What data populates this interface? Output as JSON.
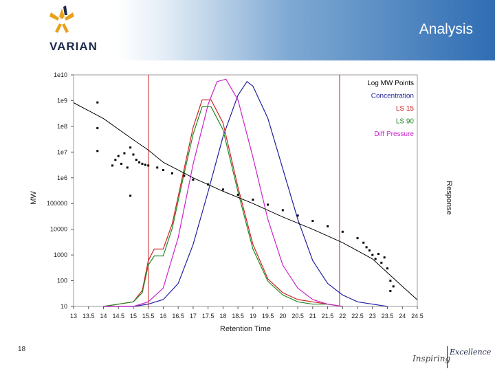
{
  "header": {
    "title": "Analysis",
    "logo_text": "VARIAN"
  },
  "footer": {
    "page_number": "18",
    "tagline_part1": "Inspiring",
    "tagline_part2": "Excellence"
  },
  "chart_data": {
    "type": "line",
    "xlabel": "Retention Time",
    "ylabel": "MW",
    "ylabel_right": "Response",
    "xlim": [
      13,
      24.5
    ],
    "ylim": [
      10,
      10000000000
    ],
    "yscale": "log",
    "x_ticks": [
      "13",
      "13.5",
      "14",
      "14.5",
      "15",
      "15.5",
      "16",
      "16.5",
      "17",
      "17.5",
      "18",
      "18.5",
      "19",
      "19.5",
      "20",
      "20.5",
      "21",
      "21.5",
      "22",
      "22.5",
      "23",
      "23.5",
      "24",
      "24.5"
    ],
    "y_ticks": [
      "1e10",
      "1e9",
      "1e8",
      "1e7",
      "1e6",
      "100000",
      "10000",
      "1000",
      "100",
      "10"
    ],
    "legend_position": "top-right",
    "legend": [
      {
        "label": "Log MW Points",
        "color": "#000000"
      },
      {
        "label": "Concentration",
        "color": "#1f1f9c"
      },
      {
        "label": "LS 15",
        "color": "#cc2222"
      },
      {
        "label": "LS 90",
        "color": "#228822"
      },
      {
        "label": "Diff Pressure",
        "color": "#cc22cc"
      }
    ],
    "vertical_markers": {
      "color": "#cc2222",
      "x": [
        15.5,
        21.9
      ]
    },
    "calibration_line": {
      "color": "#000000",
      "points": [
        [
          13,
          830000000
        ],
        [
          14,
          200000000
        ],
        [
          15,
          30000000
        ],
        [
          15.5,
          12000000
        ],
        [
          16,
          4000000
        ],
        [
          17,
          1000000
        ],
        [
          18,
          300000
        ],
        [
          19,
          100000
        ],
        [
          20,
          30000
        ],
        [
          21,
          10000
        ],
        [
          22,
          3000
        ],
        [
          23,
          700
        ],
        [
          24,
          60
        ],
        [
          24.5,
          18
        ]
      ]
    },
    "series": [
      {
        "name": "Log MW Points",
        "type": "scatter",
        "color": "#000000",
        "points": [
          [
            13.8,
            850000000
          ],
          [
            13.8,
            85000000
          ],
          [
            13.8,
            11000000
          ],
          [
            14.3,
            3000000
          ],
          [
            14.4,
            5000000
          ],
          [
            14.5,
            7000000
          ],
          [
            14.6,
            3500000
          ],
          [
            14.7,
            9000000
          ],
          [
            14.8,
            2500000
          ],
          [
            14.9,
            15000000
          ],
          [
            14.9,
            200000
          ],
          [
            15.0,
            8000000
          ],
          [
            15.1,
            5000000
          ],
          [
            15.2,
            4000000
          ],
          [
            15.3,
            3500000
          ],
          [
            15.4,
            3200000
          ],
          [
            15.5,
            3000000
          ],
          [
            15.8,
            2500000
          ],
          [
            16.0,
            2000000
          ],
          [
            16.3,
            1500000
          ],
          [
            16.7,
            1200000
          ],
          [
            17.0,
            850000
          ],
          [
            17.5,
            550000
          ],
          [
            18.0,
            350000
          ],
          [
            18.5,
            220000
          ],
          [
            19.0,
            140000
          ],
          [
            19.5,
            90000
          ],
          [
            20.0,
            55000
          ],
          [
            20.5,
            34000
          ],
          [
            21.0,
            21000
          ],
          [
            21.5,
            13000
          ],
          [
            22.0,
            8000
          ],
          [
            22.5,
            4500
          ],
          [
            22.7,
            3000
          ],
          [
            22.8,
            2000
          ],
          [
            22.9,
            1500
          ],
          [
            23.0,
            1000
          ],
          [
            23.1,
            700
          ],
          [
            23.2,
            1100
          ],
          [
            23.3,
            500
          ],
          [
            23.4,
            800
          ],
          [
            23.5,
            300
          ],
          [
            23.6,
            100
          ],
          [
            23.6,
            40
          ],
          [
            23.7,
            60
          ]
        ]
      },
      {
        "name": "Concentration",
        "type": "line",
        "color": "#1f1f9c",
        "response": [
          [
            14.0,
            0
          ],
          [
            15.0,
            0
          ],
          [
            15.5,
            0.01
          ],
          [
            16.0,
            0.03
          ],
          [
            16.5,
            0.1
          ],
          [
            17.0,
            0.27
          ],
          [
            17.5,
            0.5
          ],
          [
            18.0,
            0.74
          ],
          [
            18.5,
            0.92
          ],
          [
            18.8,
            0.98
          ],
          [
            19.0,
            0.96
          ],
          [
            19.5,
            0.82
          ],
          [
            20.0,
            0.6
          ],
          [
            20.5,
            0.38
          ],
          [
            21.0,
            0.2
          ],
          [
            21.5,
            0.1
          ],
          [
            22.0,
            0.05
          ],
          [
            22.5,
            0.02
          ],
          [
            23.0,
            0.01
          ],
          [
            23.5,
            0
          ]
        ]
      },
      {
        "name": "LS 15",
        "type": "line",
        "color": "#cc2222",
        "response": [
          [
            14.0,
            0
          ],
          [
            14.5,
            0.01
          ],
          [
            15.0,
            0.02
          ],
          [
            15.3,
            0.07
          ],
          [
            15.5,
            0.2
          ],
          [
            15.7,
            0.25
          ],
          [
            16.0,
            0.25
          ],
          [
            16.3,
            0.36
          ],
          [
            16.7,
            0.6
          ],
          [
            17.0,
            0.78
          ],
          [
            17.3,
            0.9
          ],
          [
            17.6,
            0.9
          ],
          [
            18.0,
            0.8
          ],
          [
            18.5,
            0.52
          ],
          [
            19.0,
            0.27
          ],
          [
            19.5,
            0.12
          ],
          [
            20.0,
            0.06
          ],
          [
            20.5,
            0.03
          ],
          [
            21.0,
            0.02
          ],
          [
            21.5,
            0.01
          ],
          [
            22.0,
            0
          ]
        ]
      },
      {
        "name": "LS 90",
        "type": "line",
        "color": "#228822",
        "response": [
          [
            14.0,
            0
          ],
          [
            14.5,
            0.01
          ],
          [
            15.0,
            0.02
          ],
          [
            15.3,
            0.06
          ],
          [
            15.5,
            0.18
          ],
          [
            15.7,
            0.22
          ],
          [
            16.0,
            0.22
          ],
          [
            16.3,
            0.34
          ],
          [
            16.7,
            0.58
          ],
          [
            17.0,
            0.75
          ],
          [
            17.3,
            0.87
          ],
          [
            17.6,
            0.87
          ],
          [
            18.0,
            0.77
          ],
          [
            18.5,
            0.5
          ],
          [
            19.0,
            0.25
          ],
          [
            19.5,
            0.11
          ],
          [
            20.0,
            0.05
          ],
          [
            20.5,
            0.02
          ],
          [
            21.0,
            0.01
          ],
          [
            21.5,
            0.01
          ],
          [
            22.0,
            0
          ]
        ]
      },
      {
        "name": "Diff Pressure",
        "type": "line",
        "color": "#cc22cc",
        "response": [
          [
            14.0,
            0
          ],
          [
            15.0,
            0
          ],
          [
            15.5,
            0.02
          ],
          [
            16.0,
            0.08
          ],
          [
            16.5,
            0.3
          ],
          [
            17.0,
            0.62
          ],
          [
            17.5,
            0.88
          ],
          [
            17.8,
            0.98
          ],
          [
            18.1,
            0.99
          ],
          [
            18.5,
            0.9
          ],
          [
            19.0,
            0.65
          ],
          [
            19.5,
            0.38
          ],
          [
            20.0,
            0.18
          ],
          [
            20.5,
            0.08
          ],
          [
            21.0,
            0.03
          ],
          [
            21.5,
            0.01
          ],
          [
            22.0,
            0
          ]
        ]
      }
    ]
  }
}
